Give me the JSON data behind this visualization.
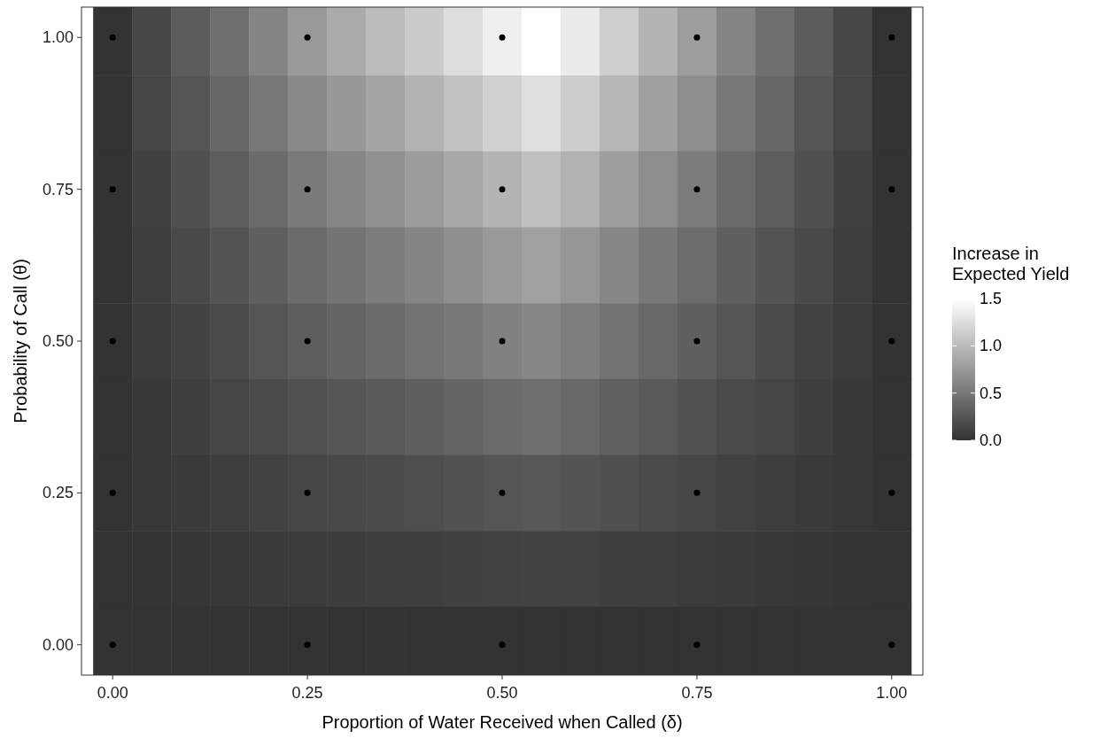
{
  "chart_data": {
    "type": "heatmap",
    "xlabel": "Proportion of Water Received when Called (δ)",
    "ylabel": "Probability of Call (θ)",
    "clabel": "Increase in\nExpected Yield",
    "x": [
      0,
      0.05,
      0.1,
      0.15,
      0.2,
      0.25,
      0.3,
      0.35,
      0.4,
      0.45,
      0.5,
      0.55,
      0.6,
      0.65,
      0.7,
      0.75,
      0.8,
      0.85,
      0.9,
      0.95,
      1
    ],
    "y": [
      1,
      0.875,
      0.75,
      0.625,
      0.5,
      0.375,
      0.25,
      0.125,
      0
    ],
    "cells": [
      [
        0,
        0.15,
        0.3,
        0.45,
        0.6,
        0.75,
        0.88,
        1.0,
        1.12,
        1.25,
        1.38,
        1.5,
        1.35,
        1.15,
        0.95,
        0.78,
        0.6,
        0.45,
        0.3,
        0.15,
        0
      ],
      [
        0,
        0.13,
        0.25,
        0.38,
        0.5,
        0.63,
        0.74,
        0.84,
        0.94,
        1.05,
        1.16,
        1.26,
        1.13,
        0.97,
        0.8,
        0.66,
        0.5,
        0.38,
        0.25,
        0.13,
        0
      ],
      [
        0,
        0.1,
        0.21,
        0.31,
        0.41,
        0.52,
        0.61,
        0.69,
        0.77,
        0.86,
        0.95,
        1.04,
        0.93,
        0.79,
        0.66,
        0.54,
        0.41,
        0.31,
        0.21,
        0.1,
        0
      ],
      [
        0,
        0.08,
        0.16,
        0.24,
        0.32,
        0.41,
        0.48,
        0.54,
        0.6,
        0.68,
        0.75,
        0.81,
        0.73,
        0.62,
        0.51,
        0.42,
        0.32,
        0.24,
        0.16,
        0.08,
        0
      ],
      [
        0,
        0.06,
        0.12,
        0.18,
        0.25,
        0.31,
        0.36,
        0.41,
        0.46,
        0.51,
        0.57,
        0.62,
        0.55,
        0.47,
        0.39,
        0.32,
        0.25,
        0.18,
        0.12,
        0.06,
        0
      ],
      [
        0,
        0.04,
        0.09,
        0.13,
        0.17,
        0.22,
        0.26,
        0.29,
        0.32,
        0.36,
        0.4,
        0.44,
        0.39,
        0.33,
        0.28,
        0.23,
        0.17,
        0.13,
        0.09,
        0.04,
        0
      ],
      [
        0,
        0.03,
        0.05,
        0.08,
        0.11,
        0.14,
        0.16,
        0.18,
        0.2,
        0.23,
        0.25,
        0.27,
        0.24,
        0.21,
        0.17,
        0.14,
        0.11,
        0.08,
        0.05,
        0.03,
        0
      ],
      [
        0,
        0.01,
        0.02,
        0.04,
        0.05,
        0.06,
        0.07,
        0.08,
        0.09,
        0.1,
        0.11,
        0.12,
        0.11,
        0.09,
        0.08,
        0.06,
        0.05,
        0.04,
        0.02,
        0.01,
        0
      ],
      [
        0,
        0,
        0,
        0,
        0,
        0,
        0,
        0,
        0,
        0,
        0,
        0,
        0,
        0,
        0,
        0,
        0,
        0,
        0,
        0,
        0
      ]
    ],
    "clim": [
      0,
      1.5
    ],
    "cticks": [
      {
        "value": 0,
        "label": "0.0"
      },
      {
        "value": 0.5,
        "label": "0.5"
      },
      {
        "value": 1,
        "label": "1.0"
      },
      {
        "value": 1.5,
        "label": "1.5"
      }
    ],
    "xlim": [
      -0.04,
      1.04
    ],
    "ylim": [
      -0.05,
      1.05
    ],
    "xticks": [
      {
        "value": 0,
        "label": "0.00"
      },
      {
        "value": 0.25,
        "label": "0.25"
      },
      {
        "value": 0.5,
        "label": "0.50"
      },
      {
        "value": 0.75,
        "label": "0.75"
      },
      {
        "value": 1,
        "label": "1.00"
      }
    ],
    "yticks": [
      {
        "value": 0,
        "label": "0.00"
      },
      {
        "value": 0.25,
        "label": "0.25"
      },
      {
        "value": 0.5,
        "label": "0.50"
      },
      {
        "value": 0.75,
        "label": "0.75"
      },
      {
        "value": 1,
        "label": "1.00"
      }
    ],
    "series": [
      {
        "type": "scatter",
        "color": "#000000",
        "x": [
          0,
          0.25,
          0.5,
          0.75,
          1,
          0,
          0.25,
          0.5,
          0.75,
          1,
          0,
          0.25,
          0.5,
          0.75,
          1,
          0,
          0.25,
          0.5,
          0.75,
          1,
          0,
          0.25,
          0.5,
          0.75,
          1
        ],
        "values": [
          0,
          0,
          0,
          0,
          0,
          0.25,
          0.25,
          0.25,
          0.25,
          0.25,
          0.5,
          0.5,
          0.5,
          0.5,
          0.5,
          0.75,
          0.75,
          0.75,
          0.75,
          0.75,
          1,
          1,
          1,
          1,
          1
        ]
      }
    ]
  }
}
